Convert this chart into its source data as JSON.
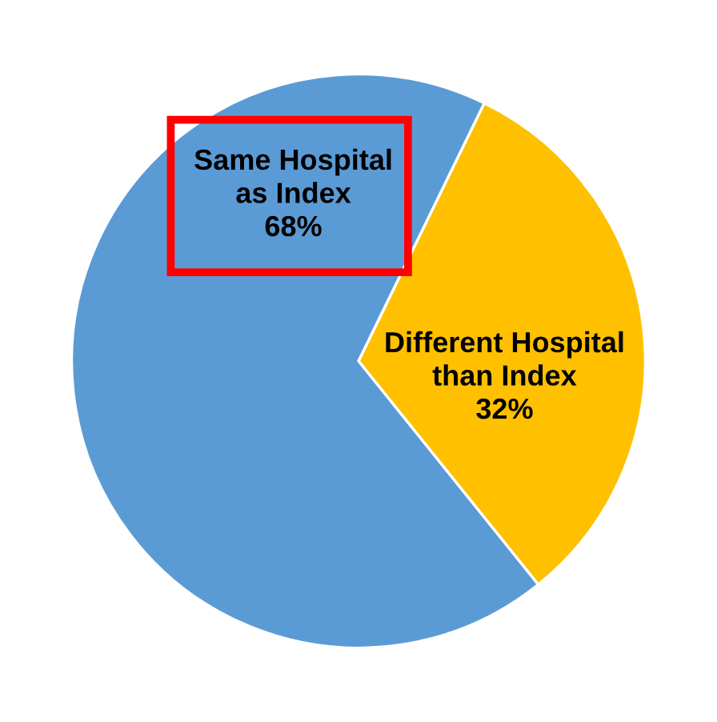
{
  "chart_data": {
    "type": "pie",
    "categories": [
      "Different Hospital\nthan Index",
      "Same Hospital\nas Index"
    ],
    "values": [
      32,
      68
    ],
    "colors": [
      "#ffc000",
      "#5b9bd5"
    ],
    "value_labels": [
      "32%",
      "68%"
    ]
  }
}
